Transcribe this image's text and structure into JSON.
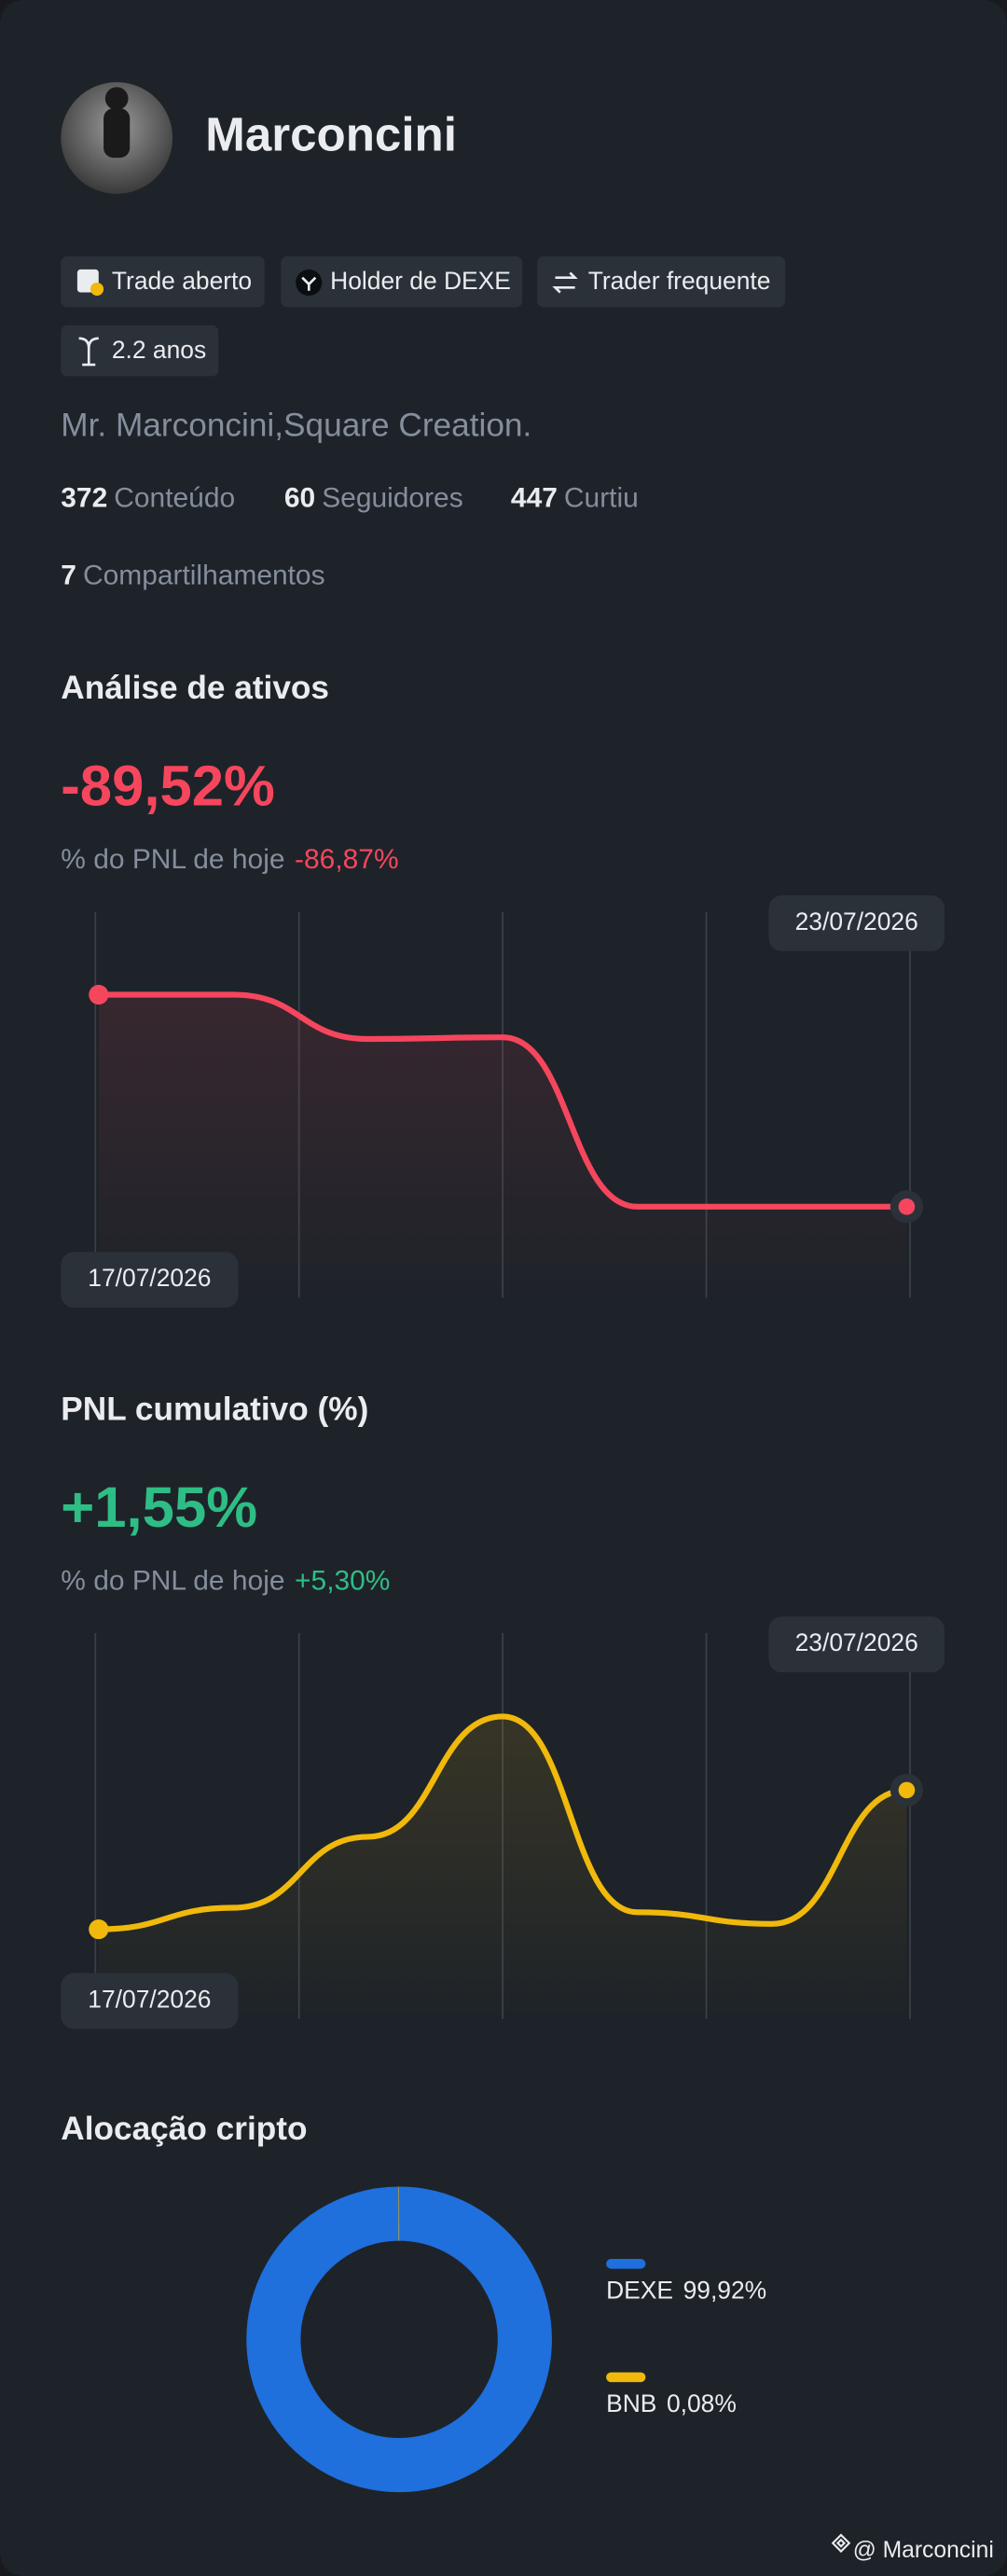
{
  "profile": {
    "name": "Marconcini",
    "badges": [
      "Trade aberto",
      "Holder de DEXE",
      "Trader frequente",
      "2.2 anos"
    ],
    "bio": "Mr. Marconcini,Square Creation.",
    "stats": [
      {
        "value": 372,
        "label": "Conteúdo"
      },
      {
        "value": 60,
        "label": "Seguidores"
      },
      {
        "value": 447,
        "label": "Curtiu"
      },
      {
        "value": 7,
        "label": "Compartilhamentos"
      }
    ]
  },
  "chart_data": [
    {
      "type": "line",
      "title": "Análise de ativos",
      "headline": "-89,52%",
      "subtitle": "% do PNL de hoje",
      "subtitle_value": "-86,87%",
      "x": [
        "17/07/2026",
        null,
        null,
        null,
        null,
        null,
        "23/07/2026"
      ],
      "values": [
        0,
        0,
        -18.7,
        -18.0,
        -89.52,
        -89.52,
        -89.52
      ],
      "ylim": [
        -128,
        35
      ],
      "color": "#f6465d"
    },
    {
      "type": "line",
      "title": "PNL cumulativo (%)",
      "headline": "+1,55%",
      "subtitle": "% do PNL de hoje",
      "subtitle_value": "+5,30%",
      "x": [
        "17/07/2026",
        null,
        null,
        null,
        null,
        null,
        "23/07/2026"
      ],
      "values": [
        0,
        0.24,
        1.03,
        2.37,
        0.19,
        0.06,
        1.55
      ],
      "ylim": [
        -1,
        3.3
      ],
      "color": "#f0b90b",
      "headline_color": "#2ebd85"
    },
    {
      "type": "pie",
      "title": "Alocação cripto",
      "categories": [
        "DEXE",
        "BNB"
      ],
      "values": [
        99.92,
        0.08
      ],
      "value_labels": [
        "99,92%",
        "0,08%"
      ],
      "colors": [
        "#1f6fdc",
        "#f0b90b"
      ]
    }
  ],
  "footer": {
    "watermark": "@ Marconcini"
  }
}
